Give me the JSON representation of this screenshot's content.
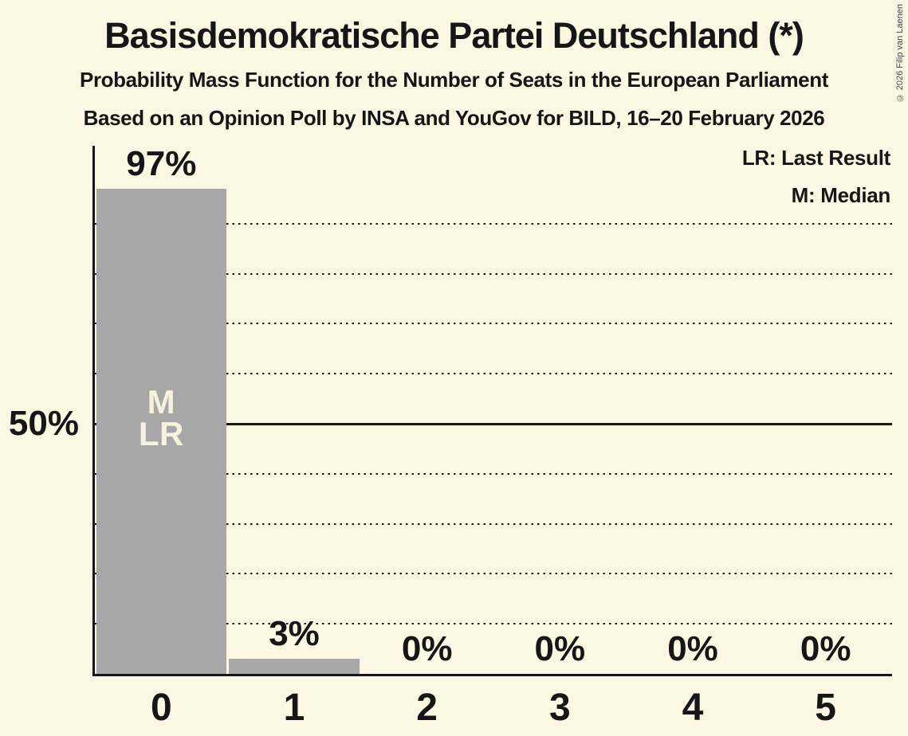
{
  "page": {
    "background_color": "#FCF7E2",
    "text_color": "#161616"
  },
  "header": {
    "title": "Basisdemokratische Partei Deutschland (*)",
    "subtitle1": "Probability Mass Function for the Number of Seats in the European Parliament",
    "subtitle2": "Based on an Opinion Poll by INSA and YouGov for BILD, 16–20 February 2026"
  },
  "copyright": "© 2026 Filip van Laenen",
  "legend": {
    "lr": "LR: Last Result",
    "m": "M: Median"
  },
  "y_axis": {
    "marker_label": "50%",
    "marker_percent": 50
  },
  "chart_data": {
    "type": "bar",
    "title": "Probability Mass Function for the Number of Seats in the European Parliament",
    "xlabel": "",
    "ylabel": "",
    "categories": [
      "0",
      "1",
      "2",
      "3",
      "4",
      "5"
    ],
    "values": [
      97,
      3,
      0,
      0,
      0,
      0
    ],
    "value_labels": [
      "97%",
      "3%",
      "0%",
      "0%",
      "0%",
      "0%"
    ],
    "ylim": [
      0,
      100
    ],
    "gridlines_percent": [
      10,
      20,
      30,
      40,
      50,
      60,
      70,
      80,
      90
    ],
    "solid_gridline_percent": 50,
    "grid_style": "dotted",
    "legend_position": "top-right",
    "bar_color": "#A7A7A7",
    "background_color": "#FCF7E2",
    "annotations": [
      {
        "bar_index": 0,
        "lines": [
          "M",
          "LR"
        ],
        "meaning": [
          "Median",
          "Last Result"
        ],
        "color": "#F7F2DF"
      }
    ]
  }
}
